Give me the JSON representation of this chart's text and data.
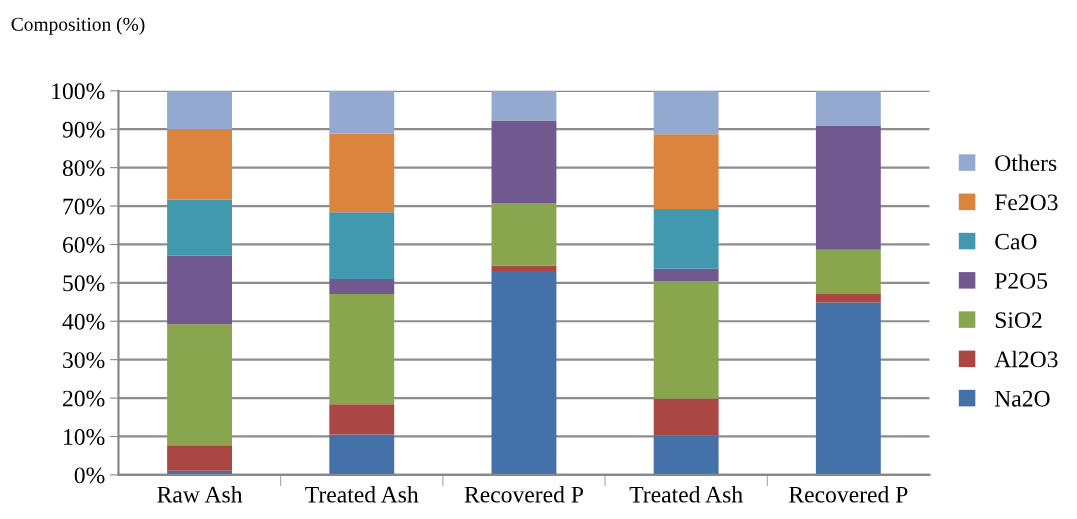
{
  "chart_data": {
    "type": "bar",
    "stacked": true,
    "ylabel": "Composition (%)",
    "categories": [
      "Raw Ash",
      "Treated Ash",
      "Recovered P",
      "Treated Ash",
      "Recovered P"
    ],
    "series": [
      {
        "name": "Na2O",
        "color": "#4472a8",
        "values": [
          1.1,
          10.5,
          53.1,
          10.3,
          44.9
        ]
      },
      {
        "name": "Al2O3",
        "color": "#aa4644",
        "values": [
          6.6,
          7.9,
          1.4,
          9.5,
          2.2
        ]
      },
      {
        "name": "SiO2",
        "color": "#89a54e",
        "values": [
          31.5,
          28.7,
          16.3,
          30.6,
          11.5
        ]
      },
      {
        "name": "P2O5",
        "color": "#71588f",
        "values": [
          17.9,
          3.9,
          21.5,
          3.3,
          32.4
        ]
      },
      {
        "name": "CaO",
        "color": "#4198af",
        "values": [
          14.6,
          17.4,
          0,
          15.5,
          0
        ]
      },
      {
        "name": "Fe2O3",
        "color": "#db843d",
        "values": [
          18.3,
          20.5,
          0,
          19.5,
          0
        ]
      },
      {
        "name": "Others",
        "color": "#93a9cf",
        "values": [
          10.0,
          11.1,
          7.7,
          11.3,
          9.0
        ]
      }
    ],
    "ylim": [
      0,
      100
    ],
    "yticks": [
      {
        "value": 0,
        "label": "0%"
      },
      {
        "value": 10,
        "label": "10%"
      },
      {
        "value": 20,
        "label": "20%"
      },
      {
        "value": 30,
        "label": "30%"
      },
      {
        "value": 40,
        "label": "40%"
      },
      {
        "value": 50,
        "label": "50%"
      },
      {
        "value": 60,
        "label": "60%"
      },
      {
        "value": 70,
        "label": "70%"
      },
      {
        "value": 80,
        "label": "80%"
      },
      {
        "value": 90,
        "label": "90%"
      },
      {
        "value": 100,
        "label": "100%"
      }
    ],
    "grid": "y",
    "legend": "right"
  }
}
